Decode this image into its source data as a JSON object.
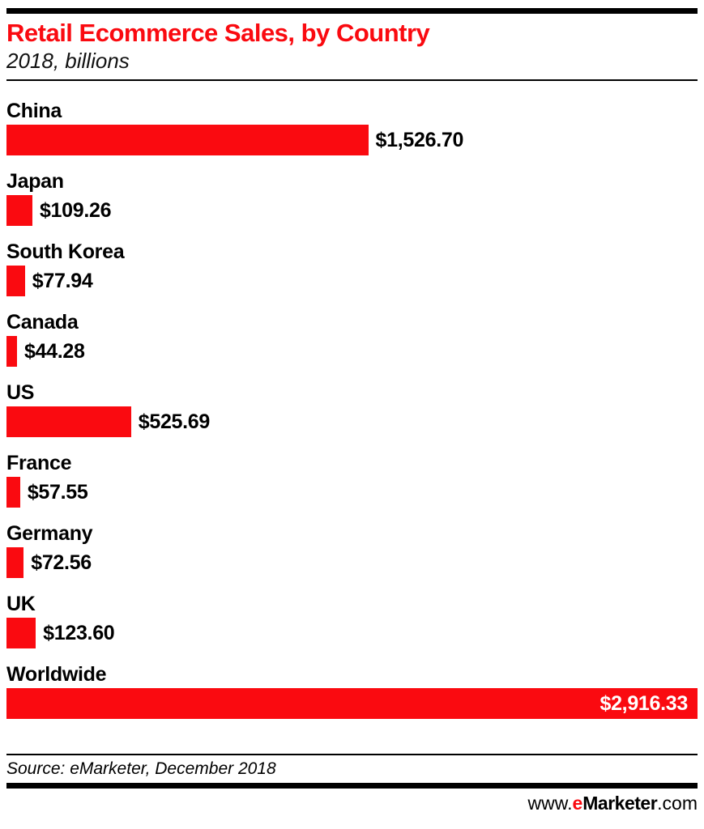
{
  "header": {
    "title": "Retail Ecommerce Sales, by Country",
    "subtitle": "2018, billions",
    "title_color": "#fa0a10"
  },
  "chart_data": {
    "type": "bar",
    "orientation": "horizontal",
    "title": "Retail Ecommerce Sales, by Country",
    "subtitle": "2018, billions",
    "unit": "US$ billions",
    "xlim": [
      0,
      2916.33
    ],
    "axis_max": 2916.33,
    "bar_color": "#fa0a10",
    "grid": false,
    "legend": "none",
    "rows": [
      {
        "category": "China",
        "value": 1526.7,
        "label": "$1,526.70",
        "value_inside": false
      },
      {
        "category": "Japan",
        "value": 109.26,
        "label": "$109.26",
        "value_inside": false
      },
      {
        "category": "South Korea",
        "value": 77.94,
        "label": "$77.94",
        "value_inside": false
      },
      {
        "category": "Canada",
        "value": 44.28,
        "label": "$44.28",
        "value_inside": false
      },
      {
        "category": "US",
        "value": 525.69,
        "label": "$525.69",
        "value_inside": false
      },
      {
        "category": "France",
        "value": 57.55,
        "label": "$57.55",
        "value_inside": false
      },
      {
        "category": "Germany",
        "value": 72.56,
        "label": "$72.56",
        "value_inside": false
      },
      {
        "category": "UK",
        "value": 123.6,
        "label": "$123.60",
        "value_inside": false
      },
      {
        "category": "Worldwide",
        "value": 2916.33,
        "label": "$2,916.33",
        "value_inside": true
      }
    ]
  },
  "footer": {
    "source": "Source: eMarketer, December 2018",
    "logo": {
      "www": "www.",
      "e": "e",
      "marketer": "Marketer",
      "com": ".com",
      "e_color": "#fa0a10"
    }
  }
}
